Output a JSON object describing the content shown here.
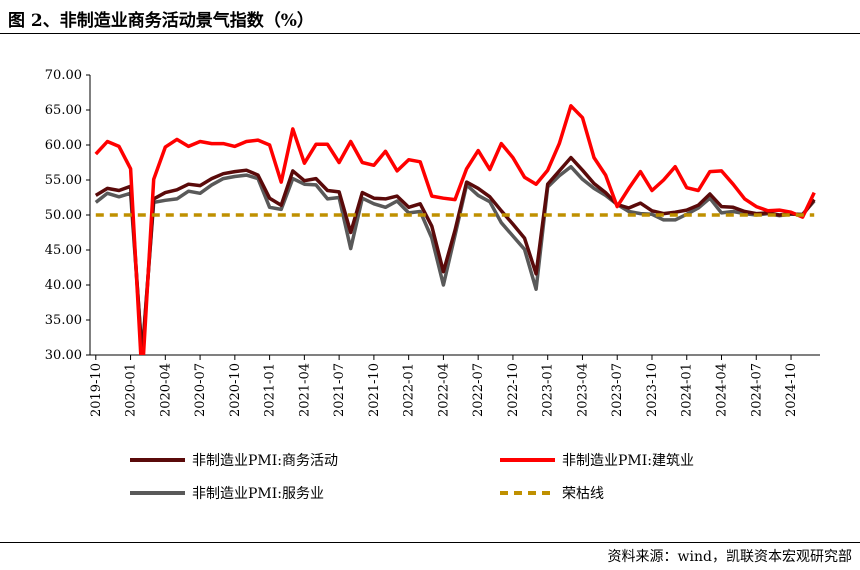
{
  "title": "图 2、非制造业商务活动景气指数（%）",
  "source": "资料来源：wind，凯联资本宏观研究部",
  "chart_data": {
    "type": "line",
    "ylim": [
      30,
      70
    ],
    "yticks": [
      "30.00",
      "35.00",
      "40.00",
      "45.00",
      "50.00",
      "55.00",
      "60.00",
      "65.00",
      "70.00"
    ],
    "x": [
      "2019-10",
      "2019-11",
      "2019-12",
      "2020-01",
      "2020-02",
      "2020-03",
      "2020-04",
      "2020-05",
      "2020-06",
      "2020-07",
      "2020-08",
      "2020-09",
      "2020-10",
      "2020-11",
      "2020-12",
      "2021-01",
      "2021-02",
      "2021-03",
      "2021-04",
      "2021-05",
      "2021-06",
      "2021-07",
      "2021-08",
      "2021-09",
      "2021-10",
      "2021-11",
      "2021-12",
      "2022-01",
      "2022-02",
      "2022-03",
      "2022-04",
      "2022-05",
      "2022-06",
      "2022-07",
      "2022-08",
      "2022-09",
      "2022-10",
      "2022-11",
      "2022-12",
      "2023-01",
      "2023-02",
      "2023-03",
      "2023-04",
      "2023-05",
      "2023-06",
      "2023-07",
      "2023-08",
      "2023-09",
      "2023-10",
      "2023-11",
      "2023-12",
      "2024-01",
      "2024-02",
      "2024-03",
      "2024-04",
      "2024-05",
      "2024-06",
      "2024-07",
      "2024-08",
      "2024-09",
      "2024-10",
      "2024-11",
      "2024-12"
    ],
    "xticks": [
      "2019-10",
      "2020-01",
      "2020-04",
      "2020-07",
      "2020-10",
      "2021-01",
      "2021-04",
      "2021-07",
      "2021-10",
      "2022-01",
      "2022-04",
      "2022-07",
      "2022-10",
      "2023-01",
      "2023-04",
      "2023-07",
      "2023-10",
      "2024-01",
      "2024-04",
      "2024-07",
      "2024-10"
    ],
    "series": [
      {
        "name": "非制造业PMI:商务活动",
        "color": "#5a0a0a",
        "dash": "",
        "values": [
          52.8,
          53.8,
          53.5,
          54.1,
          29.6,
          52.3,
          53.2,
          53.6,
          54.4,
          54.2,
          55.2,
          55.9,
          56.2,
          56.4,
          55.7,
          52.4,
          51.4,
          56.3,
          54.9,
          55.2,
          53.5,
          53.3,
          47.5,
          53.2,
          52.4,
          52.3,
          52.7,
          51.1,
          51.6,
          48.4,
          41.9,
          47.8,
          54.7,
          53.8,
          52.6,
          50.6,
          48.7,
          46.7,
          41.6,
          54.4,
          56.3,
          58.2,
          56.4,
          54.5,
          53.2,
          51.5,
          51.0,
          51.7,
          50.6,
          50.2,
          50.4,
          50.7,
          51.4,
          53.0,
          51.2,
          51.1,
          50.5,
          50.2,
          50.3,
          50.0,
          50.2,
          50.0,
          52.2
        ]
      },
      {
        "name": "非制造业PMI:建筑业",
        "color": "#ff0000",
        "dash": "",
        "values": [
          58.7,
          60.5,
          59.8,
          56.6,
          26.6,
          55.1,
          59.7,
          60.8,
          59.8,
          60.5,
          60.2,
          60.2,
          59.8,
          60.5,
          60.7,
          60.0,
          54.7,
          62.3,
          57.4,
          60.1,
          60.1,
          57.5,
          60.5,
          57.5,
          57.1,
          59.1,
          56.3,
          57.9,
          57.6,
          52.7,
          52.4,
          52.2,
          56.6,
          59.2,
          56.5,
          60.2,
          58.2,
          55.4,
          54.4,
          56.4,
          60.2,
          65.6,
          63.9,
          58.2,
          55.7,
          51.2,
          53.8,
          56.2,
          53.5,
          55.0,
          56.9,
          53.9,
          53.5,
          56.2,
          56.3,
          54.4,
          52.3,
          51.2,
          50.6,
          50.7,
          50.4,
          49.7,
          53.2
        ]
      },
      {
        "name": "非制造业PMI:服务业",
        "color": "#595959",
        "dash": "",
        "values": [
          51.8,
          53.1,
          52.6,
          53.1,
          30.1,
          51.8,
          52.1,
          52.3,
          53.4,
          53.1,
          54.3,
          55.2,
          55.5,
          55.7,
          55.2,
          51.1,
          50.8,
          55.2,
          54.4,
          54.3,
          52.3,
          52.5,
          45.2,
          52.4,
          51.6,
          51.1,
          52.0,
          50.3,
          50.5,
          46.7,
          40.0,
          47.1,
          54.3,
          52.8,
          51.9,
          48.9,
          47.0,
          45.1,
          39.4,
          54.0,
          55.6,
          56.9,
          55.1,
          53.8,
          52.8,
          51.5,
          50.5,
          50.2,
          50.1,
          49.3,
          49.3,
          50.1,
          51.0,
          52.4,
          50.3,
          50.5,
          50.2,
          50.0,
          50.2,
          49.9,
          50.1,
          50.1,
          52.0
        ]
      },
      {
        "name": "荣枯线",
        "color": "#bf9000",
        "dash": "8,6",
        "values": [
          50,
          50,
          50,
          50,
          50,
          50,
          50,
          50,
          50,
          50,
          50,
          50,
          50,
          50,
          50,
          50,
          50,
          50,
          50,
          50,
          50,
          50,
          50,
          50,
          50,
          50,
          50,
          50,
          50,
          50,
          50,
          50,
          50,
          50,
          50,
          50,
          50,
          50,
          50,
          50,
          50,
          50,
          50,
          50,
          50,
          50,
          50,
          50,
          50,
          50,
          50,
          50,
          50,
          50,
          50,
          50,
          50,
          50,
          50,
          50,
          50,
          50,
          50
        ]
      }
    ],
    "legend": "bottom"
  }
}
